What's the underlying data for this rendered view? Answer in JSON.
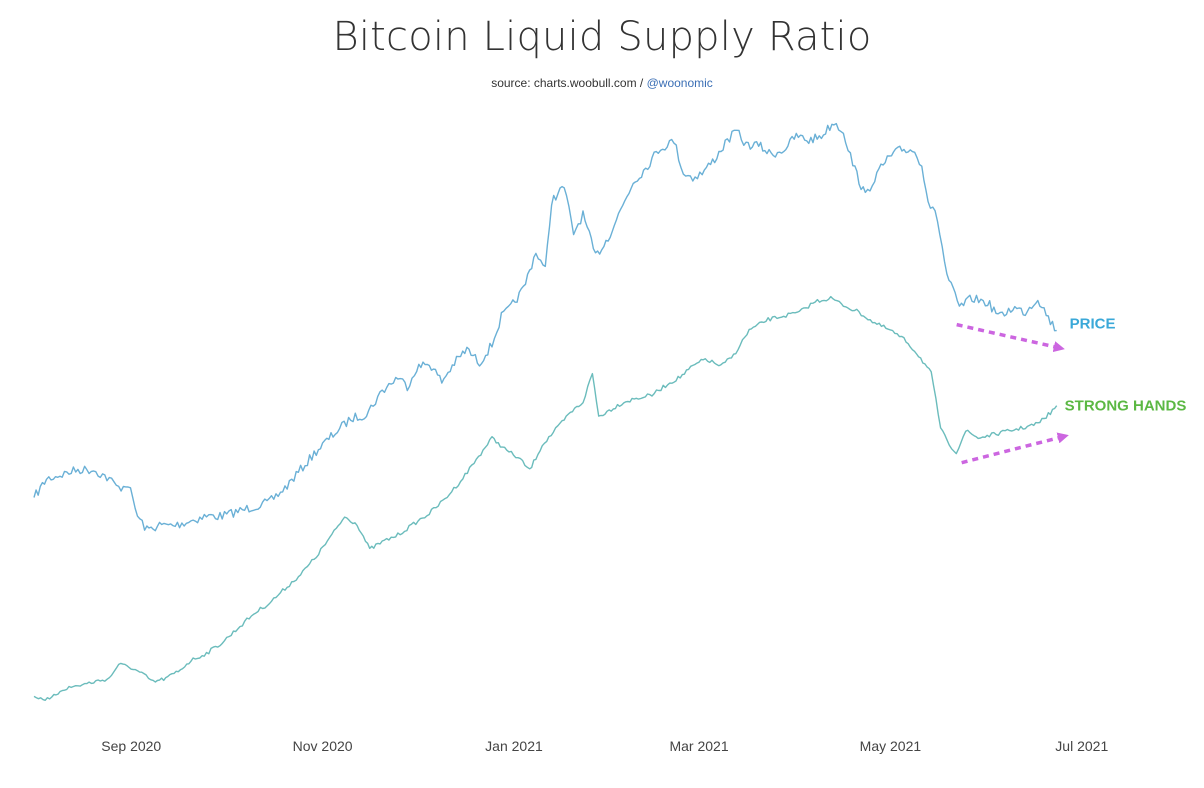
{
  "chart_data": {
    "type": "line",
    "title": "Bitcoin Liquid Supply Ratio",
    "source_prefix": "source: charts.woobull.com / ",
    "source_handle": "@woonomic",
    "x_tick_labels": [
      "Sep 2020",
      "Nov 2020",
      "Jan 2021",
      "Mar 2021",
      "May 2021",
      "Jul 2021"
    ],
    "x_ticks": [
      "2020-09-01",
      "2020-11-01",
      "2021-01-01",
      "2021-03-01",
      "2021-05-01",
      "2021-07-01"
    ],
    "xlim": [
      "2020-08-01",
      "2021-07-10"
    ],
    "y_axis_visible": false,
    "grid": false,
    "series": [
      {
        "name": "PRICE",
        "color": "#6ab0d6",
        "label_color": "#3aa8d8",
        "points": [
          [
            "2020-08-01",
            0.23
          ],
          [
            "2020-08-05",
            0.27
          ],
          [
            "2020-08-10",
            0.28
          ],
          [
            "2020-08-15",
            0.29
          ],
          [
            "2020-08-20",
            0.29
          ],
          [
            "2020-08-25",
            0.27
          ],
          [
            "2020-08-28",
            0.25
          ],
          [
            "2020-08-31",
            0.26
          ],
          [
            "2020-09-03",
            0.19
          ],
          [
            "2020-09-06",
            0.16
          ],
          [
            "2020-09-10",
            0.17
          ],
          [
            "2020-09-15",
            0.17
          ],
          [
            "2020-09-20",
            0.18
          ],
          [
            "2020-09-25",
            0.19
          ],
          [
            "2020-09-30",
            0.19
          ],
          [
            "2020-10-05",
            0.2
          ],
          [
            "2020-10-10",
            0.21
          ],
          [
            "2020-10-15",
            0.22
          ],
          [
            "2020-10-20",
            0.25
          ],
          [
            "2020-10-25",
            0.29
          ],
          [
            "2020-10-30",
            0.33
          ],
          [
            "2020-11-05",
            0.37
          ],
          [
            "2020-11-10",
            0.4
          ],
          [
            "2020-11-15",
            0.41
          ],
          [
            "2020-11-20",
            0.46
          ],
          [
            "2020-11-25",
            0.49
          ],
          [
            "2020-11-28",
            0.47
          ],
          [
            "2020-12-01",
            0.51
          ],
          [
            "2020-12-05",
            0.52
          ],
          [
            "2020-12-09",
            0.48
          ],
          [
            "2020-12-13",
            0.52
          ],
          [
            "2020-12-17",
            0.55
          ],
          [
            "2020-12-21",
            0.52
          ],
          [
            "2020-12-25",
            0.56
          ],
          [
            "2020-12-28",
            0.62
          ],
          [
            "2020-12-31",
            0.64
          ],
          [
            "2021-01-04",
            0.68
          ],
          [
            "2021-01-08",
            0.76
          ],
          [
            "2021-01-11",
            0.72
          ],
          [
            "2021-01-13",
            0.87
          ],
          [
            "2021-01-17",
            0.9
          ],
          [
            "2021-01-20",
            0.8
          ],
          [
            "2021-01-23",
            0.84
          ],
          [
            "2021-01-27",
            0.75
          ],
          [
            "2021-01-31",
            0.79
          ],
          [
            "2021-02-04",
            0.85
          ],
          [
            "2021-02-08",
            0.91
          ],
          [
            "2021-02-12",
            0.94
          ],
          [
            "2021-02-16",
            0.98
          ],
          [
            "2021-02-21",
            1.0
          ],
          [
            "2021-02-24",
            0.93
          ],
          [
            "2021-02-27",
            0.92
          ],
          [
            "2021-03-02",
            0.93
          ],
          [
            "2021-03-06",
            0.96
          ],
          [
            "2021-03-10",
            1.0
          ],
          [
            "2021-03-13",
            1.02
          ],
          [
            "2021-03-16",
            0.99
          ],
          [
            "2021-03-20",
            0.99
          ],
          [
            "2021-03-24",
            0.97
          ],
          [
            "2021-03-28",
            0.98
          ],
          [
            "2021-04-01",
            1.01
          ],
          [
            "2021-04-05",
            1.0
          ],
          [
            "2021-04-09",
            1.01
          ],
          [
            "2021-04-13",
            1.04
          ],
          [
            "2021-04-16",
            1.02
          ],
          [
            "2021-04-19",
            0.95
          ],
          [
            "2021-04-23",
            0.88
          ],
          [
            "2021-04-26",
            0.92
          ],
          [
            "2021-04-30",
            0.96
          ],
          [
            "2021-05-04",
            0.98
          ],
          [
            "2021-05-08",
            0.98
          ],
          [
            "2021-05-11",
            0.95
          ],
          [
            "2021-05-13",
            0.87
          ],
          [
            "2021-05-16",
            0.83
          ],
          [
            "2021-05-19",
            0.71
          ],
          [
            "2021-05-23",
            0.64
          ],
          [
            "2021-05-27",
            0.66
          ],
          [
            "2021-06-01",
            0.65
          ],
          [
            "2021-06-05",
            0.62
          ],
          [
            "2021-06-09",
            0.64
          ],
          [
            "2021-06-13",
            0.63
          ],
          [
            "2021-06-17",
            0.66
          ],
          [
            "2021-06-21",
            0.61
          ],
          [
            "2021-06-23",
            0.59
          ]
        ]
      },
      {
        "name": "STRONG HANDS",
        "color": "#6bbcbc",
        "label_color": "#5bb843",
        "points": [
          [
            "2020-08-01",
            0.0
          ],
          [
            "2020-08-06",
            -0.01
          ],
          [
            "2020-08-10",
            0.02
          ],
          [
            "2020-08-15",
            0.03
          ],
          [
            "2020-08-20",
            0.04
          ],
          [
            "2020-08-25",
            0.05
          ],
          [
            "2020-08-28",
            0.09
          ],
          [
            "2020-09-01",
            0.08
          ],
          [
            "2020-09-05",
            0.06
          ],
          [
            "2020-09-08",
            0.04
          ],
          [
            "2020-09-12",
            0.05
          ],
          [
            "2020-09-16",
            0.07
          ],
          [
            "2020-09-20",
            0.1
          ],
          [
            "2020-09-25",
            0.12
          ],
          [
            "2020-09-30",
            0.15
          ],
          [
            "2020-10-05",
            0.19
          ],
          [
            "2020-10-10",
            0.23
          ],
          [
            "2020-10-15",
            0.26
          ],
          [
            "2020-10-20",
            0.3
          ],
          [
            "2020-10-25",
            0.34
          ],
          [
            "2020-10-30",
            0.39
          ],
          [
            "2020-11-04",
            0.45
          ],
          [
            "2020-11-08",
            0.5
          ],
          [
            "2020-11-12",
            0.48
          ],
          [
            "2020-11-16",
            0.41
          ],
          [
            "2020-11-20",
            0.43
          ],
          [
            "2020-11-25",
            0.45
          ],
          [
            "2020-11-30",
            0.48
          ],
          [
            "2020-12-05",
            0.51
          ],
          [
            "2020-12-10",
            0.55
          ],
          [
            "2020-12-15",
            0.6
          ],
          [
            "2020-12-20",
            0.66
          ],
          [
            "2020-12-25",
            0.72
          ],
          [
            "2020-12-29",
            0.69
          ],
          [
            "2021-01-03",
            0.66
          ],
          [
            "2021-01-06",
            0.63
          ],
          [
            "2021-01-10",
            0.7
          ],
          [
            "2021-01-15",
            0.75
          ],
          [
            "2021-01-19",
            0.79
          ],
          [
            "2021-01-23",
            0.82
          ],
          [
            "2021-01-26",
            0.9
          ],
          [
            "2021-01-28",
            0.78
          ],
          [
            "2021-02-01",
            0.8
          ],
          [
            "2021-02-05",
            0.82
          ],
          [
            "2021-02-09",
            0.83
          ],
          [
            "2021-02-14",
            0.84
          ],
          [
            "2021-02-19",
            0.87
          ],
          [
            "2021-02-23",
            0.89
          ],
          [
            "2021-02-27",
            0.92
          ],
          [
            "2021-03-03",
            0.94
          ],
          [
            "2021-03-08",
            0.92
          ],
          [
            "2021-03-12",
            0.95
          ],
          [
            "2021-03-17",
            1.02
          ],
          [
            "2021-03-23",
            1.05
          ],
          [
            "2021-03-28",
            1.06
          ],
          [
            "2021-04-02",
            1.07
          ],
          [
            "2021-04-07",
            1.1
          ],
          [
            "2021-04-12",
            1.11
          ],
          [
            "2021-04-16",
            1.09
          ],
          [
            "2021-04-21",
            1.07
          ],
          [
            "2021-04-26",
            1.04
          ],
          [
            "2021-05-01",
            1.02
          ],
          [
            "2021-05-06",
            0.99
          ],
          [
            "2021-05-10",
            0.95
          ],
          [
            "2021-05-14",
            0.9
          ],
          [
            "2021-05-17",
            0.75
          ],
          [
            "2021-05-19",
            0.71
          ],
          [
            "2021-05-22",
            0.68
          ],
          [
            "2021-05-25",
            0.74
          ],
          [
            "2021-05-29",
            0.72
          ],
          [
            "2021-06-03",
            0.73
          ],
          [
            "2021-06-08",
            0.74
          ],
          [
            "2021-06-13",
            0.75
          ],
          [
            "2021-06-17",
            0.76
          ],
          [
            "2021-06-21",
            0.79
          ],
          [
            "2021-06-23",
            0.81
          ]
        ]
      }
    ],
    "annotations": [
      {
        "type": "dashed-arrow",
        "color": "#cc66e0",
        "target_series": "PRICE",
        "direction": "down"
      },
      {
        "type": "dashed-arrow",
        "color": "#cc66e0",
        "target_series": "STRONG HANDS",
        "direction": "up"
      }
    ]
  }
}
